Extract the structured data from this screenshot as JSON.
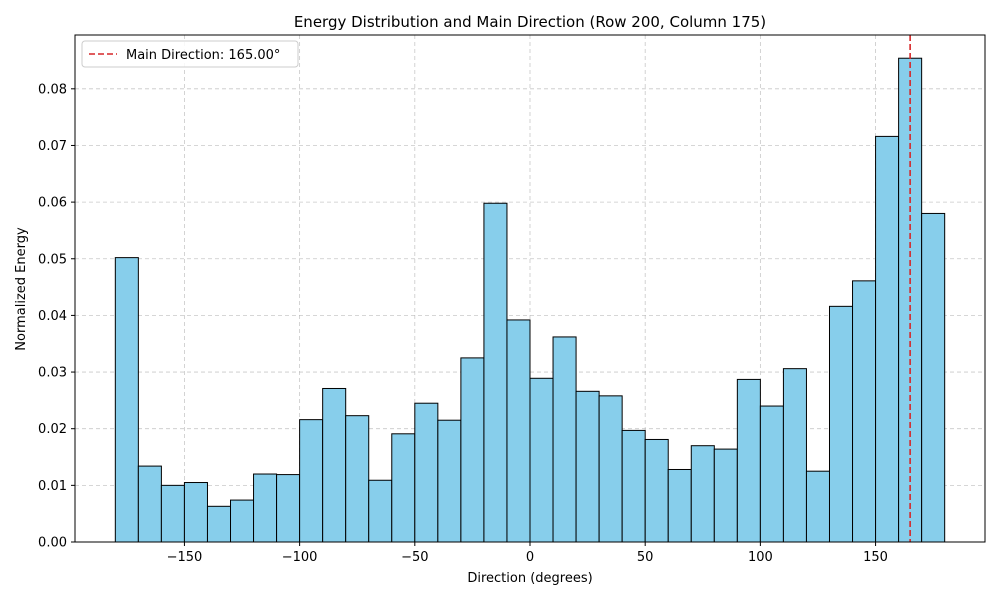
{
  "chart_data": {
    "type": "bar",
    "title": "Energy Distribution and Main Direction (Row 200, Column 175)",
    "xlabel": "Direction (degrees)",
    "ylabel": "Normalized Energy",
    "xlim": [
      -197.5,
      197.5
    ],
    "ylim": [
      0,
      0.0895
    ],
    "bin_width": 10,
    "grid": true,
    "legend_position": "top-left",
    "bar_color": "#87ceeb",
    "bar_edge_color": "#000000",
    "x_ticks": [
      -150,
      -100,
      -50,
      0,
      50,
      100,
      150
    ],
    "x_tick_labels": [
      "−150",
      "−100",
      "−50",
      "0",
      "50",
      "100",
      "150"
    ],
    "y_ticks": [
      0,
      0.01,
      0.02,
      0.03,
      0.04,
      0.05,
      0.06,
      0.07,
      0.08
    ],
    "y_tick_labels": [
      "0.00",
      "0.01",
      "0.02",
      "0.03",
      "0.04",
      "0.05",
      "0.06",
      "0.07",
      "0.08"
    ],
    "bin_starts": [
      -180,
      -170,
      -160,
      -150,
      -140,
      -130,
      -120,
      -110,
      -100,
      -90,
      -80,
      -70,
      -60,
      -50,
      -40,
      -30,
      -20,
      -10,
      0,
      10,
      20,
      30,
      40,
      50,
      60,
      70,
      80,
      90,
      100,
      110,
      120,
      130,
      140,
      150,
      160,
      170
    ],
    "values": [
      0.0502,
      0.0134,
      0.01,
      0.0105,
      0.0063,
      0.0074,
      0.012,
      0.0119,
      0.0216,
      0.0271,
      0.0223,
      0.0109,
      0.0191,
      0.0245,
      0.0215,
      0.0325,
      0.0598,
      0.0392,
      0.0289,
      0.0362,
      0.0266,
      0.0258,
      0.0197,
      0.0181,
      0.0128,
      0.017,
      0.0164,
      0.0287,
      0.024,
      0.0306,
      0.0125,
      0.0416,
      0.0461,
      0.0716,
      0.0854,
      0.058
    ],
    "main_direction": {
      "value": 165.0,
      "label": "Main Direction: 165.00°",
      "color": "#d62728"
    }
  }
}
